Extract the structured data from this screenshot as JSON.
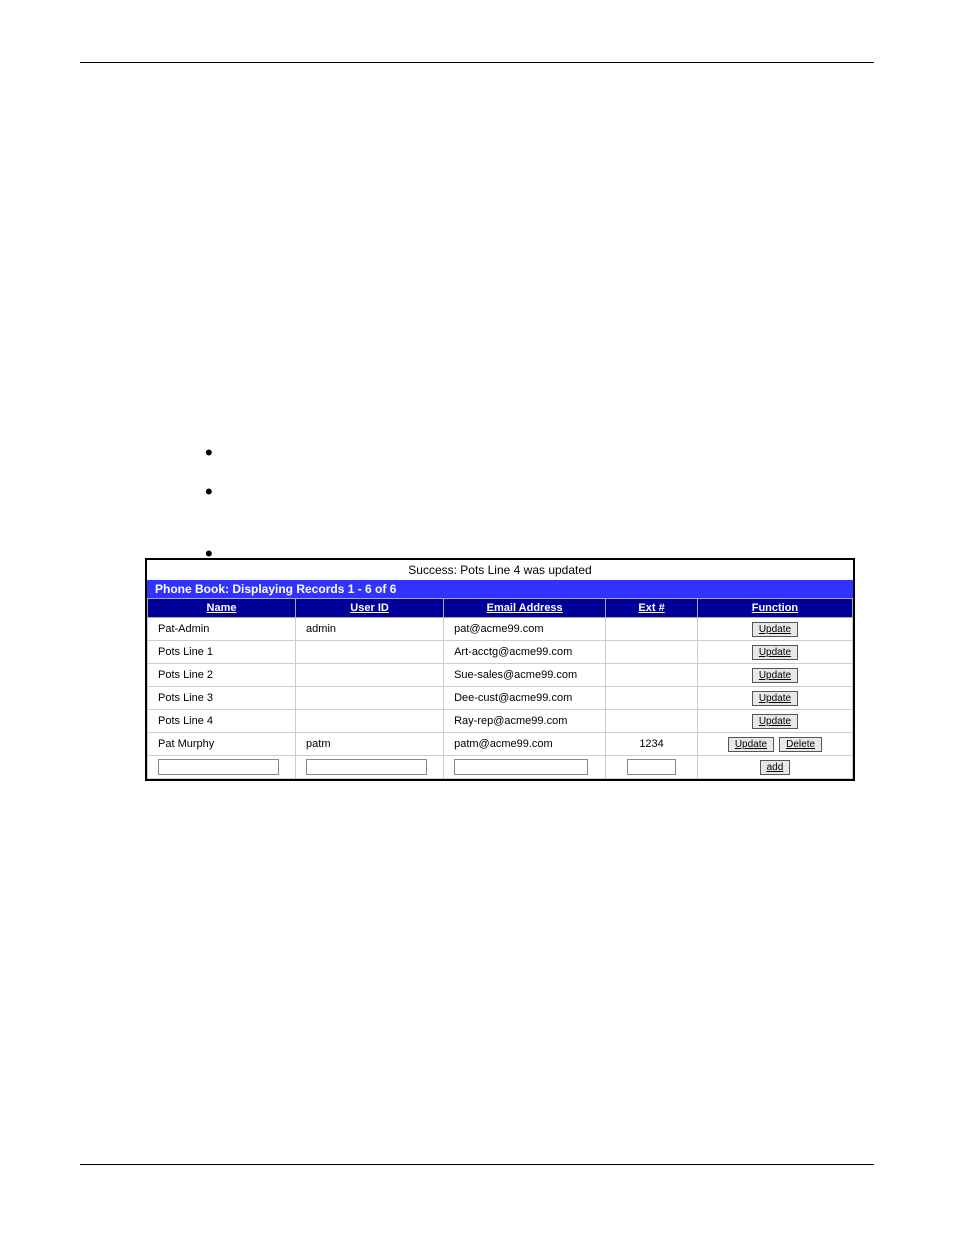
{
  "status_message": "Success: Pots Line 4 was updated",
  "title_bar": "Phone Book: Displaying Records 1 - 6 of 6",
  "columns": {
    "name": "Name",
    "userid": "User ID",
    "email": "Email Address",
    "ext": "Ext #",
    "fn": "Function"
  },
  "rows": [
    {
      "name": "Pat-Admin",
      "userid": "admin",
      "email": "pat@acme99.com",
      "ext": "",
      "buttons": [
        "Update"
      ]
    },
    {
      "name": "Pots Line 1",
      "userid": "",
      "email": "Art-acctg@acme99.com",
      "ext": "",
      "buttons": [
        "Update"
      ]
    },
    {
      "name": "Pots Line 2",
      "userid": "",
      "email": "Sue-sales@acme99.com",
      "ext": "",
      "buttons": [
        "Update"
      ]
    },
    {
      "name": "Pots Line 3",
      "userid": "",
      "email": "Dee-cust@acme99.com",
      "ext": "",
      "buttons": [
        "Update"
      ]
    },
    {
      "name": "Pots Line 4",
      "userid": "",
      "email": "Ray-rep@acme99.com",
      "ext": "",
      "buttons": [
        "Update"
      ]
    },
    {
      "name": "Pat Murphy",
      "userid": "patm",
      "email": "patm@acme99.com",
      "ext": "1234",
      "buttons": [
        "Update",
        "Delete"
      ]
    }
  ],
  "add_row_button": "add",
  "colors": {
    "header_bg": "#000099",
    "title_bg": "#3333ff",
    "border": "#cccccc",
    "button_bg": "#e8e8e8"
  }
}
